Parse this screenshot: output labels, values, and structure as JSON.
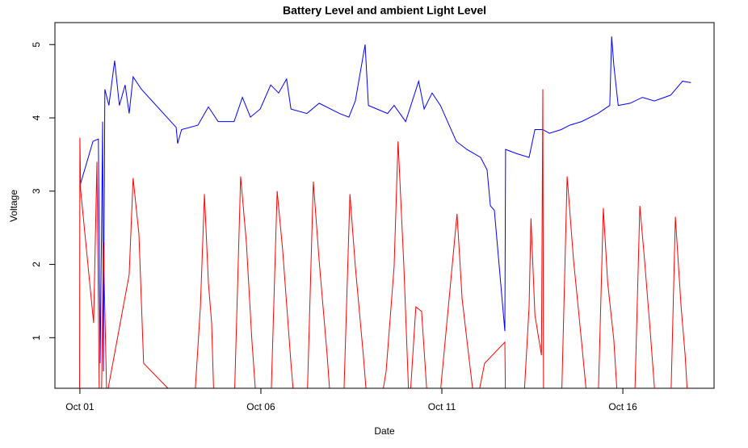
{
  "chart_data": {
    "type": "line",
    "title": "Battery Level and ambient Light Level",
    "x_label": "Date",
    "y_label": "Voltage",
    "xlim": [
      0.31,
      18.52
    ],
    "ylim": [
      0.31,
      5.3
    ],
    "xticks": [
      {
        "value": 1,
        "label": "Oct 01"
      },
      {
        "value": 6,
        "label": "Oct 06"
      },
      {
        "value": 11,
        "label": "Oct 11"
      },
      {
        "value": 16,
        "label": "Oct 16"
      }
    ],
    "yticks": [
      1,
      2,
      3,
      4,
      5
    ],
    "grid": false,
    "series": [
      {
        "name": "Battery Level",
        "color": "#0000ff",
        "x": [
          1.0,
          1.36,
          1.51,
          1.56,
          1.63,
          1.65,
          1.69,
          1.8,
          1.96,
          2.09,
          2.25,
          2.36,
          2.47,
          2.7,
          3.66,
          3.7,
          3.81,
          4.26,
          4.55,
          4.82,
          5.26,
          5.49,
          5.71,
          5.98,
          6.27,
          6.49,
          6.71,
          6.83,
          7.27,
          7.61,
          8.17,
          8.43,
          8.61,
          8.88,
          8.97,
          9.5,
          9.68,
          10.0,
          10.36,
          10.51,
          10.73,
          10.96,
          11.4,
          11.69,
          12.07,
          12.25,
          12.34,
          12.45,
          12.74,
          12.76,
          13.08,
          13.41,
          13.57,
          13.79,
          13.97,
          14.3,
          14.53,
          14.86,
          15.31,
          15.64,
          15.69,
          15.75,
          15.87,
          16.2,
          16.54,
          16.87,
          17.32,
          17.65,
          17.88
        ],
        "values": [
          3.07,
          3.68,
          3.71,
          0.65,
          3.95,
          0.54,
          4.39,
          4.17,
          4.78,
          4.17,
          4.45,
          4.06,
          4.56,
          4.39,
          3.87,
          3.65,
          3.84,
          3.9,
          4.15,
          3.95,
          3.95,
          4.28,
          4.01,
          4.12,
          4.45,
          4.34,
          4.53,
          4.12,
          4.06,
          4.2,
          4.06,
          4.01,
          4.23,
          5.0,
          4.17,
          4.06,
          4.17,
          3.95,
          4.5,
          4.12,
          4.34,
          4.17,
          3.68,
          3.57,
          3.46,
          3.29,
          2.8,
          2.74,
          1.09,
          3.57,
          3.51,
          3.46,
          3.84,
          3.84,
          3.79,
          3.84,
          3.9,
          3.95,
          4.06,
          4.17,
          5.11,
          4.72,
          4.17,
          4.2,
          4.28,
          4.23,
          4.31,
          4.5,
          4.48
        ]
      },
      {
        "name": "ambient Light Level",
        "color": "#ff0000",
        "x": [
          0.99,
          1.0,
          1.02,
          1.38,
          1.47,
          1.54,
          1.6,
          1.65,
          1.74,
          2.36,
          2.47,
          2.63,
          2.76,
          3.43,
          4.15,
          4.33,
          4.44,
          4.55,
          4.64,
          4.71,
          5.26,
          5.44,
          5.6,
          5.75,
          5.89,
          6.27,
          6.45,
          6.6,
          6.83,
          6.94,
          7.27,
          7.45,
          7.61,
          7.83,
          7.94,
          8.28,
          8.46,
          8.61,
          8.83,
          8.95,
          9.28,
          9.46,
          9.68,
          9.79,
          9.95,
          10.1,
          10.28,
          10.44,
          10.62,
          10.91,
          11.22,
          11.42,
          11.56,
          11.74,
          11.92,
          12.18,
          12.74,
          12.76,
          13.25,
          13.41,
          13.46,
          13.57,
          13.75,
          13.79,
          13.81,
          14.3,
          14.46,
          14.64,
          14.86,
          15.04,
          15.31,
          15.46,
          15.58,
          15.75,
          15.87,
          16.32,
          16.47,
          16.6,
          16.76,
          16.92,
          17.32,
          17.45,
          17.61,
          17.72,
          17.81
        ],
        "values": [
          0,
          3.73,
          3.02,
          1.2,
          3.4,
          0,
          0.3,
          2.3,
          0.2,
          1.86,
          3.18,
          2.41,
          0.65,
          0.31,
          0,
          1.42,
          2.96,
          1.75,
          1.2,
          0,
          0,
          3.2,
          2.3,
          0.97,
          0,
          0,
          3.0,
          2.2,
          0.65,
          0,
          0,
          3.13,
          2.05,
          0.76,
          0,
          0,
          2.96,
          1.97,
          0.76,
          0,
          0,
          0.54,
          1.97,
          3.68,
          1.97,
          0,
          1.42,
          1.36,
          0,
          0,
          1.64,
          2.69,
          1.53,
          0.76,
          0,
          0.65,
          0.94,
          0,
          0,
          1.42,
          2.63,
          1.31,
          0.76,
          4.39,
          0,
          0,
          3.2,
          2.05,
          0.94,
          0,
          0,
          2.77,
          1.75,
          0.97,
          0,
          0,
          2.8,
          2.05,
          1.07,
          0,
          0,
          2.65,
          1.42,
          0.76,
          0
        ]
      }
    ]
  }
}
